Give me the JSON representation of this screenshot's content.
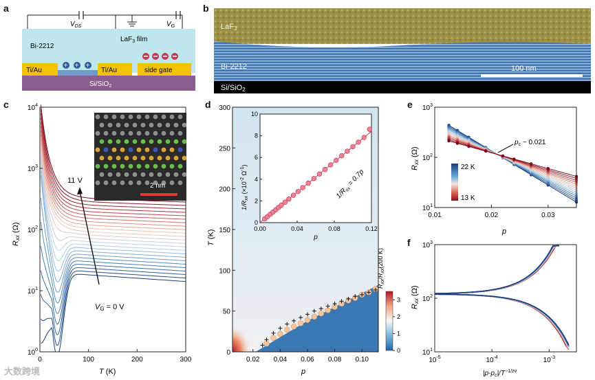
{
  "panels": {
    "a": "a",
    "b": "b",
    "c": "c",
    "d": "d",
    "e": "e",
    "f": "f"
  },
  "panel_a": {
    "vds": "V",
    "vds_sub": "DS",
    "vg": "V",
    "vg_sub": "G",
    "film": "LaF",
    "film_sub": "3",
    "film_suffix": " film",
    "sample": "Bi-2212",
    "contact_left": "Ti/Au",
    "contact_right": "Ti/Au",
    "side_gate": "side gate",
    "substrate": "Si/SiO",
    "substrate_sub": "2",
    "colors": {
      "film": "#bfe6ee",
      "contact": "#f3c200",
      "substrate": "#8c5e8f",
      "plus": "#2d5d9a",
      "minus": "#c23a4d"
    }
  },
  "panel_b": {
    "top": "LaF",
    "top_sub": "3",
    "middle": "Bi-2212",
    "bottom": "Si/SiO",
    "bottom_sub": "2",
    "scale": "100 nm",
    "colors": {
      "laf3": "#9c8f46",
      "bi2212": "#3f74b0",
      "sio2": "#000000"
    }
  },
  "panel_c": {
    "xlabel": "T (K)",
    "ylabel": "R",
    "ylabel_sub": "xx",
    "ylabel_unit": " (Ω)",
    "xticks": [
      "0",
      "100",
      "200",
      "300"
    ],
    "yticks": [
      "10",
      "10",
      "10",
      "10",
      "10"
    ],
    "yexp": [
      "0",
      "1",
      "2",
      "3",
      "4"
    ],
    "ann_top": "11 V",
    "ann_bottom": "V",
    "ann_bottom_sub": "G",
    "ann_bottom_suffix": " = 0 V",
    "inset_scale": "2 nm"
  },
  "panel_d": {
    "xlabel": "p",
    "ylabel": "T (K)",
    "xticks": [
      "0.02",
      "0.04",
      "0.06",
      "0.08",
      "0.10"
    ],
    "yticks": [
      "0",
      "50",
      "100",
      "150",
      "200",
      "250",
      "300"
    ],
    "cbar_label": "R",
    "cbar_label_sub": "xx",
    "cbar_label_mid": "/R",
    "cbar_label_sub2": "xx",
    "cbar_label_end": "(200 K)",
    "cbar_ticks": [
      "0",
      "1",
      "2",
      "3"
    ],
    "inset": {
      "xlabel": "p",
      "ylabel": "1/R",
      "ylabel_sub": "xx",
      "ylabel_unit": " (×10",
      "ylabel_exp": "-2",
      "ylabel_end": " Ω",
      "ylabel_exp2": "-1",
      "ylabel_close": ")",
      "xticks": [
        "0.00",
        "0.04",
        "0.08",
        "0.12"
      ],
      "yticks": [
        "0",
        "2",
        "4",
        "6",
        "8",
        "10"
      ],
      "fit": "1/R",
      "fit_sub": "xx",
      "fit_suffix": " = 0.7p"
    }
  },
  "panel_e": {
    "xlabel": "p",
    "ylabel": "R",
    "ylabel_sub": "xx",
    "ylabel_unit": " (Ω)",
    "xticks": [
      "0.01",
      "0.02",
      "0.03"
    ],
    "yticks": [
      "10",
      "10",
      "10"
    ],
    "yexp": [
      "1",
      "2",
      "3"
    ],
    "pc": "p",
    "pc_sub": "c",
    "pc_suffix": " ~ 0.021",
    "legend_high": "22 K",
    "legend_low": "13 K"
  },
  "panel_f": {
    "xlabel": "|p-p",
    "xlabel_sub": "c",
    "xlabel_mid": "|/T",
    "xlabel_exp": " -1/zν",
    "ylabel": "R",
    "ylabel_sub": "xx",
    "ylabel_unit": " (Ω)",
    "xticks": [
      "10",
      "10",
      "10"
    ],
    "xexp": [
      "-5",
      "-4",
      "-3"
    ],
    "yticks": [
      "10",
      "10",
      "10"
    ],
    "yexp": [
      "1",
      "2",
      "3"
    ]
  },
  "watermark": "大数跨境",
  "chart_data": [
    {
      "panel": "c",
      "type": "line",
      "xlabel": "T (K)",
      "ylabel": "Rxx (Ω)",
      "xlim": [
        0,
        300
      ],
      "ylim": [
        1,
        10000
      ],
      "yscale": "log",
      "series_note_top": "11 V",
      "series_note_bottom": "VG = 0 V",
      "curves_at_300K": [
        [
          300,
          300
        ],
        [
          300,
          200
        ],
        [
          300,
          140
        ],
        [
          300,
          90
        ],
        [
          300,
          62
        ],
        [
          300,
          42
        ],
        [
          300,
          30
        ],
        [
          300,
          23
        ],
        [
          300,
          18
        ],
        [
          300,
          15
        ]
      ]
    },
    {
      "panel": "d",
      "type": "heatmap",
      "xlabel": "p",
      "ylabel": "T (K)",
      "xlim": [
        0.005,
        0.112
      ],
      "ylim": [
        0,
        300
      ],
      "cbar_range": [
        0,
        3.5
      ],
      "circles": [
        [
          0.03,
          10
        ],
        [
          0.035,
          17
        ],
        [
          0.04,
          22
        ],
        [
          0.045,
          27
        ],
        [
          0.05,
          31
        ],
        [
          0.055,
          35
        ],
        [
          0.06,
          39
        ],
        [
          0.065,
          43
        ],
        [
          0.07,
          47
        ],
        [
          0.075,
          51
        ],
        [
          0.08,
          55
        ],
        [
          0.085,
          59
        ],
        [
          0.09,
          63
        ],
        [
          0.095,
          66
        ],
        [
          0.1,
          70
        ],
        [
          0.105,
          73
        ],
        [
          0.11,
          77
        ]
      ],
      "crosses": [
        [
          0.027,
          8
        ],
        [
          0.03,
          15
        ],
        [
          0.035,
          23
        ],
        [
          0.04,
          29
        ],
        [
          0.045,
          34
        ],
        [
          0.05,
          38
        ],
        [
          0.055,
          42
        ],
        [
          0.06,
          46
        ],
        [
          0.065,
          50
        ],
        [
          0.07,
          53
        ],
        [
          0.075,
          56
        ],
        [
          0.08,
          59
        ],
        [
          0.085,
          62
        ],
        [
          0.09,
          65
        ],
        [
          0.095,
          68
        ],
        [
          0.1,
          70
        ],
        [
          0.105,
          73
        ],
        [
          0.11,
          76
        ]
      ]
    },
    {
      "panel": "d-inset",
      "type": "scatter",
      "xlabel": "p",
      "ylabel": "1/Rxx (×10^-2 Ω^-1)",
      "xlim": [
        0,
        0.12
      ],
      "ylim": [
        0,
        10
      ],
      "x": [
        0.005,
        0.008,
        0.011,
        0.014,
        0.017,
        0.02,
        0.023,
        0.027,
        0.031,
        0.036,
        0.041,
        0.046,
        0.052,
        0.058,
        0.064,
        0.07,
        0.076,
        0.082,
        0.088,
        0.094,
        0.1,
        0.106,
        0.112,
        0.118
      ],
      "y": [
        0.35,
        0.56,
        0.77,
        0.98,
        1.19,
        1.4,
        1.61,
        1.89,
        2.17,
        2.52,
        2.87,
        3.22,
        3.64,
        4.06,
        4.48,
        4.9,
        5.32,
        5.74,
        6.16,
        6.58,
        7.0,
        7.42,
        7.84,
        8.6
      ],
      "fit": "1/Rxx = 0.7p"
    },
    {
      "panel": "e",
      "type": "line",
      "xlabel": "p",
      "ylabel": "Rxx (Ω)",
      "xlim": [
        0.01,
        0.035
      ],
      "ylim": [
        10,
        1000
      ],
      "yscale": "log",
      "x": [
        0.0125,
        0.014,
        0.016,
        0.019,
        0.022,
        0.024,
        0.027,
        0.03,
        0.035
      ],
      "series": [
        {
          "name": "22 K",
          "values": [
            800,
            480,
            280,
            160,
            120,
            80,
            55,
            35,
            13
          ]
        },
        {
          "name": "13 K",
          "values": [
            420,
            320,
            230,
            160,
            120,
            95,
            75,
            58,
            38
          ]
        }
      ],
      "pc": 0.021
    },
    {
      "panel": "f",
      "type": "scatter",
      "xlabel": "|p-pc|/T^-1/zν",
      "ylabel": "Rxx (Ω)",
      "xlim": [
        1e-05,
        0.003
      ],
      "ylim": [
        10,
        1000
      ],
      "xscale": "log",
      "yscale": "log",
      "upper_branch": {
        "x": [
          1e-05,
          0.0001,
          0.0003,
          0.0006,
          0.001,
          0.0014
        ],
        "y": [
          120,
          130,
          150,
          220,
          400,
          850
        ]
      },
      "lower_branch": {
        "x": [
          1e-05,
          0.0001,
          0.0003,
          0.0006,
          0.001,
          0.0015,
          0.002
        ],
        "y": [
          120,
          100,
          85,
          60,
          35,
          18,
          12
        ]
      }
    }
  ]
}
